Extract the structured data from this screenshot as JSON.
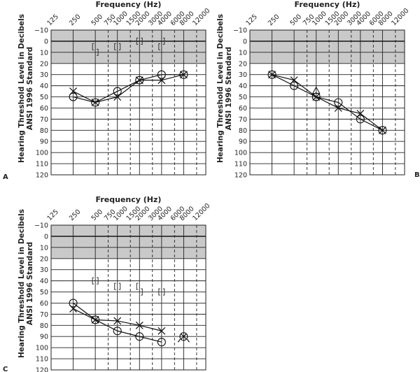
{
  "chart_data": [
    {
      "type": "scatter",
      "panel_label": "A",
      "title": "Frequency (Hz)",
      "ylabel_lines": [
        "Hearing Threshold Level in Decibels",
        "ANSI 1996 Standard"
      ],
      "x_ticks": [
        "125",
        "250",
        "500",
        "750",
        "1000",
        "1500",
        "2000",
        "3000",
        "4000",
        "6000",
        "8000",
        "12000"
      ],
      "y_ticks": [
        "−10",
        "0",
        "10",
        "20",
        "30",
        "40",
        "50",
        "60",
        "70",
        "80",
        "90",
        "100",
        "110",
        "120"
      ],
      "ylim": [
        -10,
        120
      ],
      "shaded_range": [
        -10,
        20
      ],
      "series": [
        {
          "name": "right-ear-air-conduction",
          "symbol": "circle",
          "connected": true,
          "points": [
            [
              250,
              50
            ],
            [
              500,
              55
            ],
            [
              1000,
              45
            ],
            [
              2000,
              35
            ],
            [
              4000,
              30
            ],
            [
              8000,
              30
            ]
          ]
        },
        {
          "name": "left-ear-air-conduction",
          "symbol": "x",
          "connected": true,
          "points": [
            [
              250,
              45
            ],
            [
              500,
              55
            ],
            [
              1000,
              50
            ],
            [
              2000,
              35
            ],
            [
              4000,
              35
            ],
            [
              8000,
              30
            ]
          ]
        },
        {
          "name": "right-masked-bone",
          "symbol": "[",
          "connected": false,
          "points": [
            [
              500,
              5
            ],
            [
              1000,
              5
            ],
            [
              2000,
              0
            ],
            [
              4000,
              5
            ]
          ]
        },
        {
          "name": "left-masked-bone",
          "symbol": "]",
          "connected": false,
          "points": [
            [
              500,
              10
            ],
            [
              1000,
              5
            ],
            [
              2000,
              0
            ],
            [
              4000,
              0
            ]
          ]
        }
      ]
    },
    {
      "type": "scatter",
      "panel_label": "B",
      "title": "Frequency (Hz)",
      "ylabel_lines": [
        "Hearing Threshold Level in Decibels",
        "ANSI 1996 Standard"
      ],
      "x_ticks": [
        "125",
        "250",
        "500",
        "750",
        "1000",
        "1500",
        "2000",
        "3000",
        "4000",
        "6000",
        "8000",
        "12000"
      ],
      "y_ticks": [
        "−10",
        "0",
        "10",
        "20",
        "30",
        "40",
        "50",
        "60",
        "70",
        "80",
        "90",
        "100",
        "110",
        "120"
      ],
      "ylim": [
        -10,
        120
      ],
      "shaded_range": [
        -10,
        20
      ],
      "series": [
        {
          "name": "right-ear-air-conduction",
          "symbol": "circle",
          "connected": true,
          "points": [
            [
              250,
              30
            ],
            [
              500,
              40
            ],
            [
              1000,
              50
            ],
            [
              2000,
              55
            ],
            [
              4000,
              70
            ],
            [
              8000,
              80
            ]
          ]
        },
        {
          "name": "left-ear-air-conduction",
          "symbol": "x",
          "connected": true,
          "points": [
            [
              250,
              30
            ],
            [
              500,
              35
            ],
            [
              1000,
              50
            ],
            [
              2000,
              60
            ],
            [
              4000,
              65
            ],
            [
              8000,
              80
            ]
          ]
        },
        {
          "name": "sound-field",
          "symbol": "triangle",
          "connected": false,
          "points": [
            [
              1000,
              45
            ]
          ]
        }
      ]
    },
    {
      "type": "scatter",
      "panel_label": "C",
      "title": "Frequency (Hz)",
      "ylabel_lines": [
        "Hearing Threshold Level in Decibels",
        "ANSI 1996 Standard"
      ],
      "x_ticks": [
        "125",
        "250",
        "500",
        "750",
        "1000",
        "1500",
        "2000",
        "3000",
        "4000",
        "6000",
        "8000",
        "12000"
      ],
      "y_ticks": [
        "−10",
        "0",
        "10",
        "20",
        "30",
        "40",
        "50",
        "60",
        "70",
        "80",
        "90",
        "100",
        "110",
        "120"
      ],
      "ylim": [
        -10,
        120
      ],
      "shaded_range": [
        -10,
        20
      ],
      "series": [
        {
          "name": "right-ear-air-conduction",
          "symbol": "circle",
          "connected": true,
          "points": [
            [
              250,
              60
            ],
            [
              500,
              75
            ],
            [
              1000,
              85
            ],
            [
              2000,
              90
            ],
            [
              4000,
              95
            ]
          ]
        },
        {
          "name": "left-ear-air-conduction",
          "symbol": "x",
          "connected": true,
          "points": [
            [
              250,
              65
            ],
            [
              500,
              75
            ],
            [
              1000,
              76
            ],
            [
              2000,
              80
            ],
            [
              4000,
              85
            ]
          ]
        },
        {
          "name": "no-response-both-ears",
          "symbol": "circle-x-arrows",
          "connected": false,
          "points": [
            [
              8000,
              90
            ]
          ]
        },
        {
          "name": "right-masked-bone",
          "symbol": "[",
          "connected": false,
          "points": [
            [
              500,
              40
            ],
            [
              1000,
              45
            ],
            [
              2000,
              45
            ],
            [
              4000,
              50
            ]
          ]
        },
        {
          "name": "left-masked-bone",
          "symbol": "]",
          "connected": false,
          "points": [
            [
              500,
              40
            ],
            [
              1000,
              45
            ],
            [
              2000,
              50
            ],
            [
              4000,
              50
            ]
          ]
        }
      ]
    }
  ]
}
